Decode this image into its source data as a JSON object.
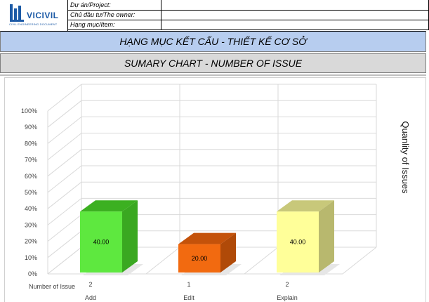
{
  "logo": {
    "text": "VICIVIL",
    "subtitle": "CIVIL ENGINEERING DOCUMENT",
    "icon": "vicivil-logo-icon",
    "brand_color": "#1c5aa6"
  },
  "info": {
    "rows": [
      {
        "label": "Dự án/Project:",
        "value": ""
      },
      {
        "label": "Chủ đầu tư/The owner:",
        "value": ""
      },
      {
        "label": "Hạng mục/Item:",
        "value": ""
      }
    ]
  },
  "section_title": "HẠNG MỤC KẾT CẤU  - THIẾT KẾ CƠ SỞ",
  "chart_header": "SUMARY CHART -  NUMBER OF ISSUE",
  "colors": {
    "band_blue": "#b7cdef",
    "band_gray": "#d9d9d9"
  },
  "chart_data": {
    "type": "bar",
    "style": "3d-column",
    "categories": [
      "Add",
      "Edit",
      "Explain"
    ],
    "values": [
      40.0,
      20.0,
      40.0
    ],
    "data_labels": [
      "40.00",
      "20.00",
      "40.00"
    ],
    "table_row_label": "Number of Issue",
    "table_row_values": [
      "2",
      "1",
      "2"
    ],
    "ylabel": "Quanlity of Issues",
    "ylim": [
      0,
      100
    ],
    "yticks": [
      "0%",
      "10%",
      "20%",
      "30%",
      "40%",
      "50%",
      "60%",
      "70%",
      "80%",
      "90%",
      "100%"
    ],
    "grid": true,
    "legend": "none",
    "bar_colors": [
      {
        "front": "#5ee83f",
        "side": "#3aa821",
        "top": "#3cb021"
      },
      {
        "front": "#f26a10",
        "side": "#b04a08",
        "top": "#c4520a"
      },
      {
        "front": "#ffff99",
        "side": "#b8b86e",
        "top": "#c8c87a"
      }
    ]
  }
}
